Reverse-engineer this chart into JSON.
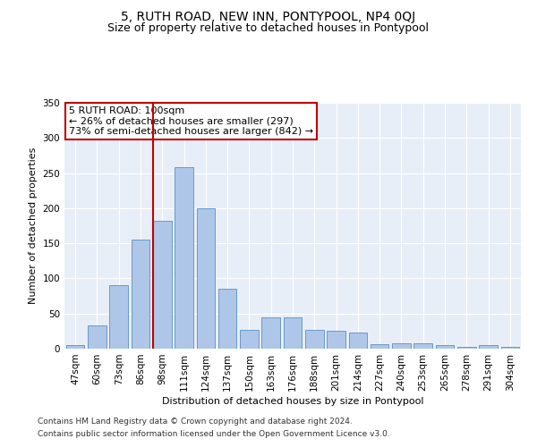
{
  "title": "5, RUTH ROAD, NEW INN, PONTYPOOL, NP4 0QJ",
  "subtitle": "Size of property relative to detached houses in Pontypool",
  "xlabel": "Distribution of detached houses by size in Pontypool",
  "ylabel": "Number of detached properties",
  "categories": [
    "47sqm",
    "60sqm",
    "73sqm",
    "86sqm",
    "98sqm",
    "111sqm",
    "124sqm",
    "137sqm",
    "150sqm",
    "163sqm",
    "176sqm",
    "188sqm",
    "201sqm",
    "214sqm",
    "227sqm",
    "240sqm",
    "253sqm",
    "265sqm",
    "278sqm",
    "291sqm",
    "304sqm"
  ],
  "values": [
    5,
    33,
    91,
    155,
    182,
    258,
    200,
    85,
    27,
    44,
    44,
    27,
    25,
    23,
    7,
    8,
    8,
    5,
    2,
    5,
    3
  ],
  "bar_color": "#aec6e8",
  "bar_edge_color": "#5a8fc2",
  "highlight_color": "#c00000",
  "highlight_index": 4,
  "annotation_text": "5 RUTH ROAD: 100sqm\n← 26% of detached houses are smaller (297)\n73% of semi-detached houses are larger (842) →",
  "annotation_box_color": "#ffffff",
  "annotation_box_edge_color": "#c00000",
  "ylim": [
    0,
    350
  ],
  "yticks": [
    0,
    50,
    100,
    150,
    200,
    250,
    300,
    350
  ],
  "background_color": "#e8eef7",
  "footer1": "Contains HM Land Registry data © Crown copyright and database right 2024.",
  "footer2": "Contains public sector information licensed under the Open Government Licence v3.0.",
  "title_fontsize": 10,
  "subtitle_fontsize": 9,
  "axis_fontsize": 8,
  "tick_fontsize": 7.5,
  "annotation_fontsize": 8
}
